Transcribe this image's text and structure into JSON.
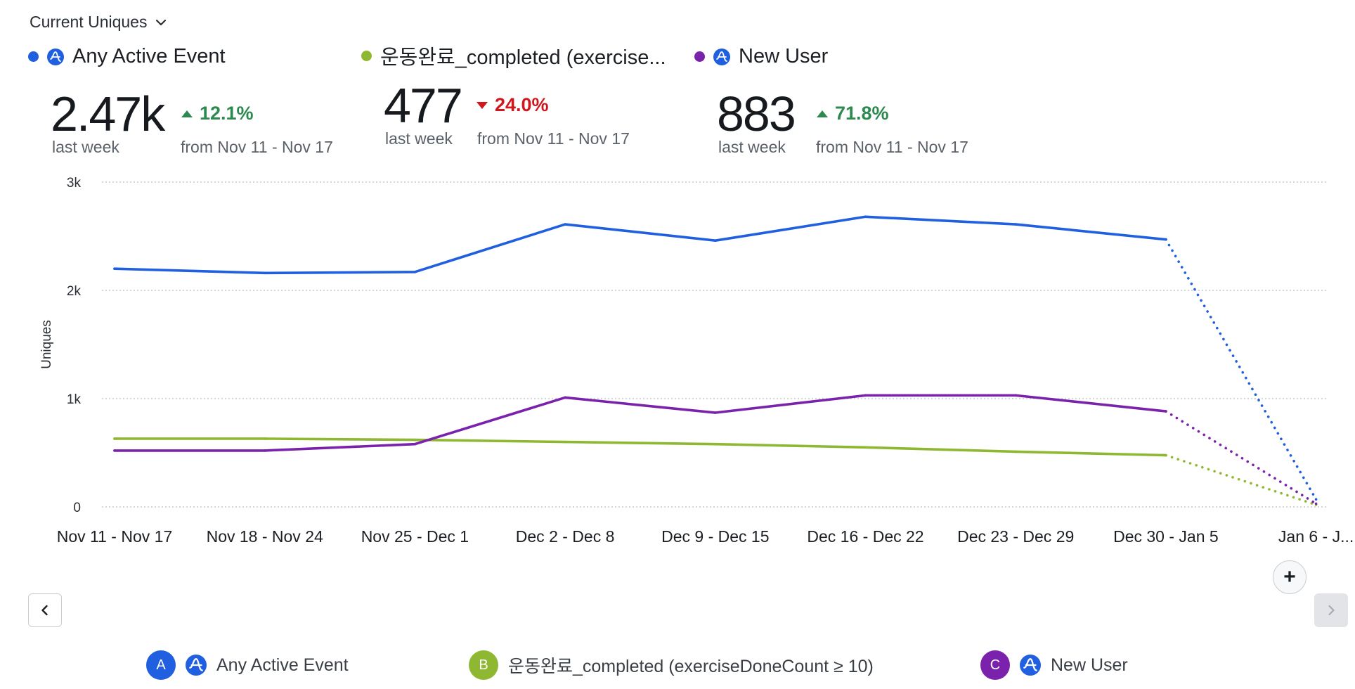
{
  "header": {
    "metric_selector_label": "Current Uniques"
  },
  "summaries": [
    {
      "name": "Any Active Event",
      "color": "#1f5fe0",
      "value": "2.47k",
      "period": "last week",
      "delta": "12.1%",
      "direction": "up",
      "from": "from Nov 11 - Nov 17"
    },
    {
      "name": "운동완료_completed (exercise...",
      "color": "#8fb832",
      "value": "477",
      "period": "last week",
      "delta": "24.0%",
      "direction": "down",
      "from": "from Nov 11 - Nov 17"
    },
    {
      "name": "New User",
      "color": "#7a22ab",
      "value": "883",
      "period": "last week",
      "delta": "71.8%",
      "direction": "up",
      "from": "from Nov 11 - Nov 17"
    }
  ],
  "chart_data": {
    "type": "line",
    "ylabel": "Uniques",
    "ylim": [
      0,
      3000
    ],
    "y_ticks": [
      0,
      1000,
      2000,
      3000
    ],
    "y_tick_labels": [
      "0",
      "1k",
      "2k",
      "3k"
    ],
    "categories": [
      "Nov 11 - Nov 17",
      "Nov 18 - Nov 24",
      "Nov 25 - Dec 1",
      "Dec 2 - Dec 8",
      "Dec 9 - Dec 15",
      "Dec 16 - Dec 22",
      "Dec 23 - Dec 29",
      "Dec 30 - Jan 5",
      "Jan 6 - J..."
    ],
    "incomplete_last_period": true,
    "grid": "horizontal-dotted",
    "series": [
      {
        "name": "Any Active Event",
        "color": "#1f5fe0",
        "values": [
          2200,
          2160,
          2170,
          2610,
          2460,
          2680,
          2610,
          2470,
          70
        ]
      },
      {
        "name": "운동완료_completed (exerciseDoneCount ≥ 10)",
        "color": "#8fb832",
        "values": [
          630,
          630,
          620,
          600,
          580,
          550,
          510,
          477,
          20
        ]
      },
      {
        "name": "New User",
        "color": "#7a22ab",
        "values": [
          520,
          520,
          580,
          1010,
          870,
          1030,
          1030,
          883,
          30
        ]
      }
    ]
  },
  "legend": [
    {
      "badge": "A",
      "label": "Any Active Event",
      "color": "#1f5fe0",
      "has_icon": true
    },
    {
      "badge": "B",
      "label": "운동완료_completed (exerciseDoneCount ≥ 10)",
      "color": "#8fb832",
      "has_icon": false
    },
    {
      "badge": "C",
      "label": "New User",
      "color": "#7a22ab",
      "has_icon": true
    }
  ],
  "controls": {
    "add_symbol": "+"
  },
  "icons": {
    "dropdown": "chevron-down-icon",
    "prev": "chevron-left-icon",
    "next": "chevron-right-icon",
    "event": "amplitude-event-icon"
  }
}
